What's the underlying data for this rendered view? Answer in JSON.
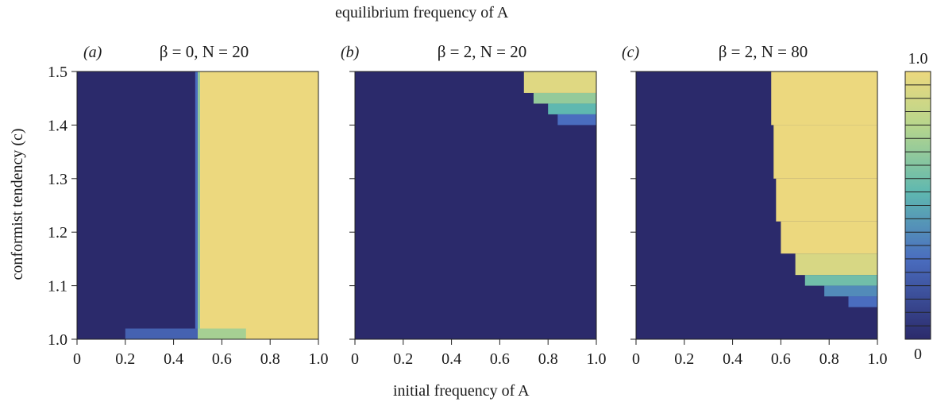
{
  "figure": {
    "supertitle": "equilibrium frequency of A",
    "xlabel": "initial frequency of A",
    "ylabel": "conformist tendency (c)",
    "colorbar": {
      "max_label": "1.0",
      "min_label": "0",
      "levels": 20
    }
  },
  "chart_data": [
    {
      "type": "heatmap",
      "panel_label": "(a)",
      "title": "β = 0, N = 20",
      "x_ticks": [
        "0",
        "0.2",
        "0.4",
        "0.6",
        "0.8",
        "1.0"
      ],
      "y_ticks": [
        "1.0",
        "1.1",
        "1.2",
        "1.3",
        "1.4",
        "1.5"
      ],
      "xlim": [
        0,
        1
      ],
      "ylim": [
        1.0,
        1.5
      ],
      "regions": [
        {
          "x": [
            0.0,
            0.49
          ],
          "y": [
            1.0,
            1.5
          ],
          "value": 0.0
        },
        {
          "x": [
            0.49,
            0.5
          ],
          "y": [
            1.0,
            1.5
          ],
          "value": 0.3
        },
        {
          "x": [
            0.5,
            0.51
          ],
          "y": [
            1.0,
            1.5
          ],
          "value": 0.7
        },
        {
          "x": [
            0.51,
            1.0
          ],
          "y": [
            1.0,
            1.5
          ],
          "value": 1.0
        },
        {
          "x": [
            0.2,
            0.5
          ],
          "y": [
            1.0,
            1.02
          ],
          "value": 0.25
        },
        {
          "x": [
            0.5,
            0.7
          ],
          "y": [
            1.0,
            1.02
          ],
          "value": 0.75
        }
      ]
    },
    {
      "type": "heatmap",
      "panel_label": "(b)",
      "title": "β = 2, N = 20",
      "x_ticks": [
        "0",
        "0.2",
        "0.4",
        "0.6",
        "0.8",
        "1.0"
      ],
      "y_ticks": [
        "1.0",
        "1.1",
        "1.2",
        "1.3",
        "1.4",
        "1.5"
      ],
      "xlim": [
        0,
        1
      ],
      "ylim": [
        1.0,
        1.5
      ],
      "regions": [
        {
          "x": [
            0.0,
            1.0
          ],
          "y": [
            1.0,
            1.5
          ],
          "value": 0.0
        },
        {
          "x": [
            0.7,
            1.0
          ],
          "y": [
            1.46,
            1.5
          ],
          "value": 0.95
        },
        {
          "x": [
            0.74,
            1.0
          ],
          "y": [
            1.44,
            1.46
          ],
          "value": 0.7
        },
        {
          "x": [
            0.8,
            1.0
          ],
          "y": [
            1.42,
            1.44
          ],
          "value": 0.55
        },
        {
          "x": [
            0.84,
            1.0
          ],
          "y": [
            1.4,
            1.42
          ],
          "value": 0.3
        }
      ]
    },
    {
      "type": "heatmap",
      "panel_label": "(c)",
      "title": "β = 2, N = 80",
      "x_ticks": [
        "0",
        "0.2",
        "0.4",
        "0.6",
        "0.8",
        "1.0"
      ],
      "y_ticks": [
        "1.0",
        "1.1",
        "1.2",
        "1.3",
        "1.4",
        "1.5"
      ],
      "xlim": [
        0,
        1
      ],
      "ylim": [
        1.0,
        1.5
      ],
      "regions": [
        {
          "x": [
            0.0,
            1.0
          ],
          "y": [
            1.0,
            1.5
          ],
          "value": 0.0
        },
        {
          "x": [
            0.56,
            1.0
          ],
          "y": [
            1.4,
            1.5
          ],
          "value": 1.0
        },
        {
          "x": [
            0.57,
            1.0
          ],
          "y": [
            1.3,
            1.4
          ],
          "value": 1.0
        },
        {
          "x": [
            0.58,
            1.0
          ],
          "y": [
            1.22,
            1.3
          ],
          "value": 1.0
        },
        {
          "x": [
            0.6,
            1.0
          ],
          "y": [
            1.16,
            1.22
          ],
          "value": 1.0
        },
        {
          "x": [
            0.66,
            1.0
          ],
          "y": [
            1.12,
            1.16
          ],
          "value": 0.92
        },
        {
          "x": [
            0.7,
            1.0
          ],
          "y": [
            1.1,
            1.12
          ],
          "value": 0.6
        },
        {
          "x": [
            0.78,
            1.0
          ],
          "y": [
            1.08,
            1.1
          ],
          "value": 0.4
        },
        {
          "x": [
            0.88,
            1.0
          ],
          "y": [
            1.06,
            1.08
          ],
          "value": 0.3
        }
      ]
    }
  ]
}
